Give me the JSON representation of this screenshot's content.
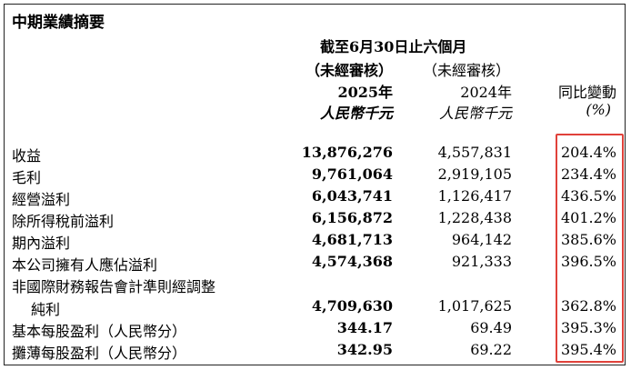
{
  "title": "中期業績摘要",
  "header": {
    "period": "截至6月30日止六個月",
    "audit_2025": "（未經審核）",
    "audit_2024": "（未經審核）",
    "year_2025": "2025年",
    "year_2024": "2024年",
    "change": "同比變動",
    "unit_2025": "人民幣千元",
    "unit_2024": "人民幣千元",
    "change_unit": "(%)"
  },
  "rows": [
    {
      "label": "收益",
      "y2025": "13,876,276",
      "y2024": "4,557,831",
      "change": "204.4%"
    },
    {
      "label": "毛利",
      "y2025": "9,761,064",
      "y2024": "2,919,105",
      "change": "234.4%"
    },
    {
      "label": "經營溢利",
      "y2025": "6,043,741",
      "y2024": "1,126,417",
      "change": "436.5%"
    },
    {
      "label": "除所得稅前溢利",
      "y2025": "6,156,872",
      "y2024": "1,228,438",
      "change": "401.2%"
    },
    {
      "label": "期內溢利",
      "y2025": "4,681,713",
      "y2024": "964,142",
      "change": "385.6%"
    },
    {
      "label": "本公司擁有人應佔溢利",
      "y2025": "4,574,368",
      "y2024": "921,333",
      "change": "396.5%"
    },
    {
      "label": "非國際財務報告會計準則經調整",
      "label2": "純利",
      "y2025": "4,709,630",
      "y2024": "1,017,625",
      "change": "362.8%"
    },
    {
      "label": "基本每股盈利（人民幣分）",
      "y2025": "344.17",
      "y2024": "69.49",
      "change": "395.3%"
    },
    {
      "label": "攤薄每股盈利（人民幣分）",
      "y2025": "342.95",
      "y2024": "69.22",
      "change": "395.4%"
    }
  ]
}
